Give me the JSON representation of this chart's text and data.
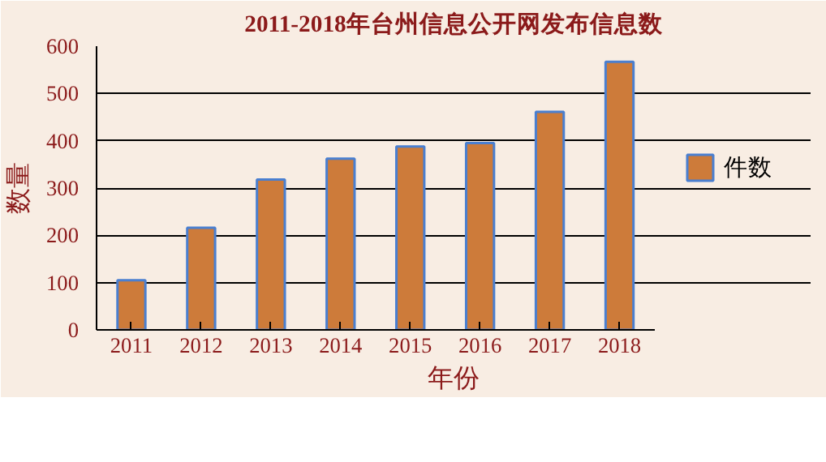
{
  "chart_data": {
    "type": "bar",
    "title": "2011-2018年台州信息公开网发布信息数",
    "xlabel": "年份",
    "ylabel": "数量",
    "categories": [
      "2011",
      "2012",
      "2013",
      "2014",
      "2015",
      "2016",
      "2017",
      "2018"
    ],
    "series": [
      {
        "name": "件数",
        "color": "#cd7b3a",
        "values": [
          105,
          216,
          318,
          362,
          388,
          395,
          461,
          567
        ]
      }
    ],
    "ylim": [
      0,
      600
    ],
    "yticks": [
      0,
      100,
      200,
      300,
      400,
      500,
      600
    ],
    "grid": "y",
    "legend": "right"
  }
}
